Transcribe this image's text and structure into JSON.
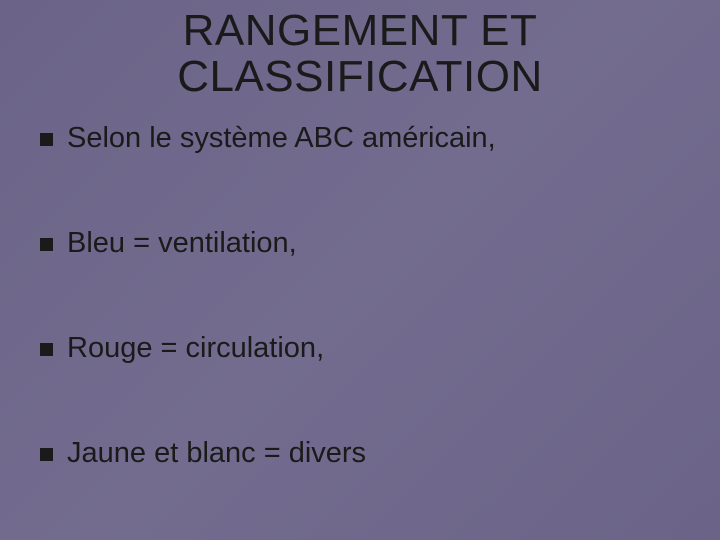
{
  "slide": {
    "background_gradient": [
      "#6b6488",
      "#736c8f",
      "#6b6488"
    ],
    "title": {
      "line1": "RANGEMENT ET",
      "line2": "CLASSIFICATION",
      "font_size": 44,
      "color": "#1a1a1a"
    },
    "bullets": [
      {
        "text": "Selon le système ABC américain,"
      },
      {
        "text": "Bleu = ventilation,"
      },
      {
        "text": "Rouge = circulation,"
      },
      {
        "text": "Jaune et blanc = divers"
      }
    ],
    "bullet_style": {
      "marker_color": "#1a1a1a",
      "marker_size": 13,
      "text_color": "#1a1a1a",
      "font_size": 29,
      "spacing": 72
    }
  }
}
